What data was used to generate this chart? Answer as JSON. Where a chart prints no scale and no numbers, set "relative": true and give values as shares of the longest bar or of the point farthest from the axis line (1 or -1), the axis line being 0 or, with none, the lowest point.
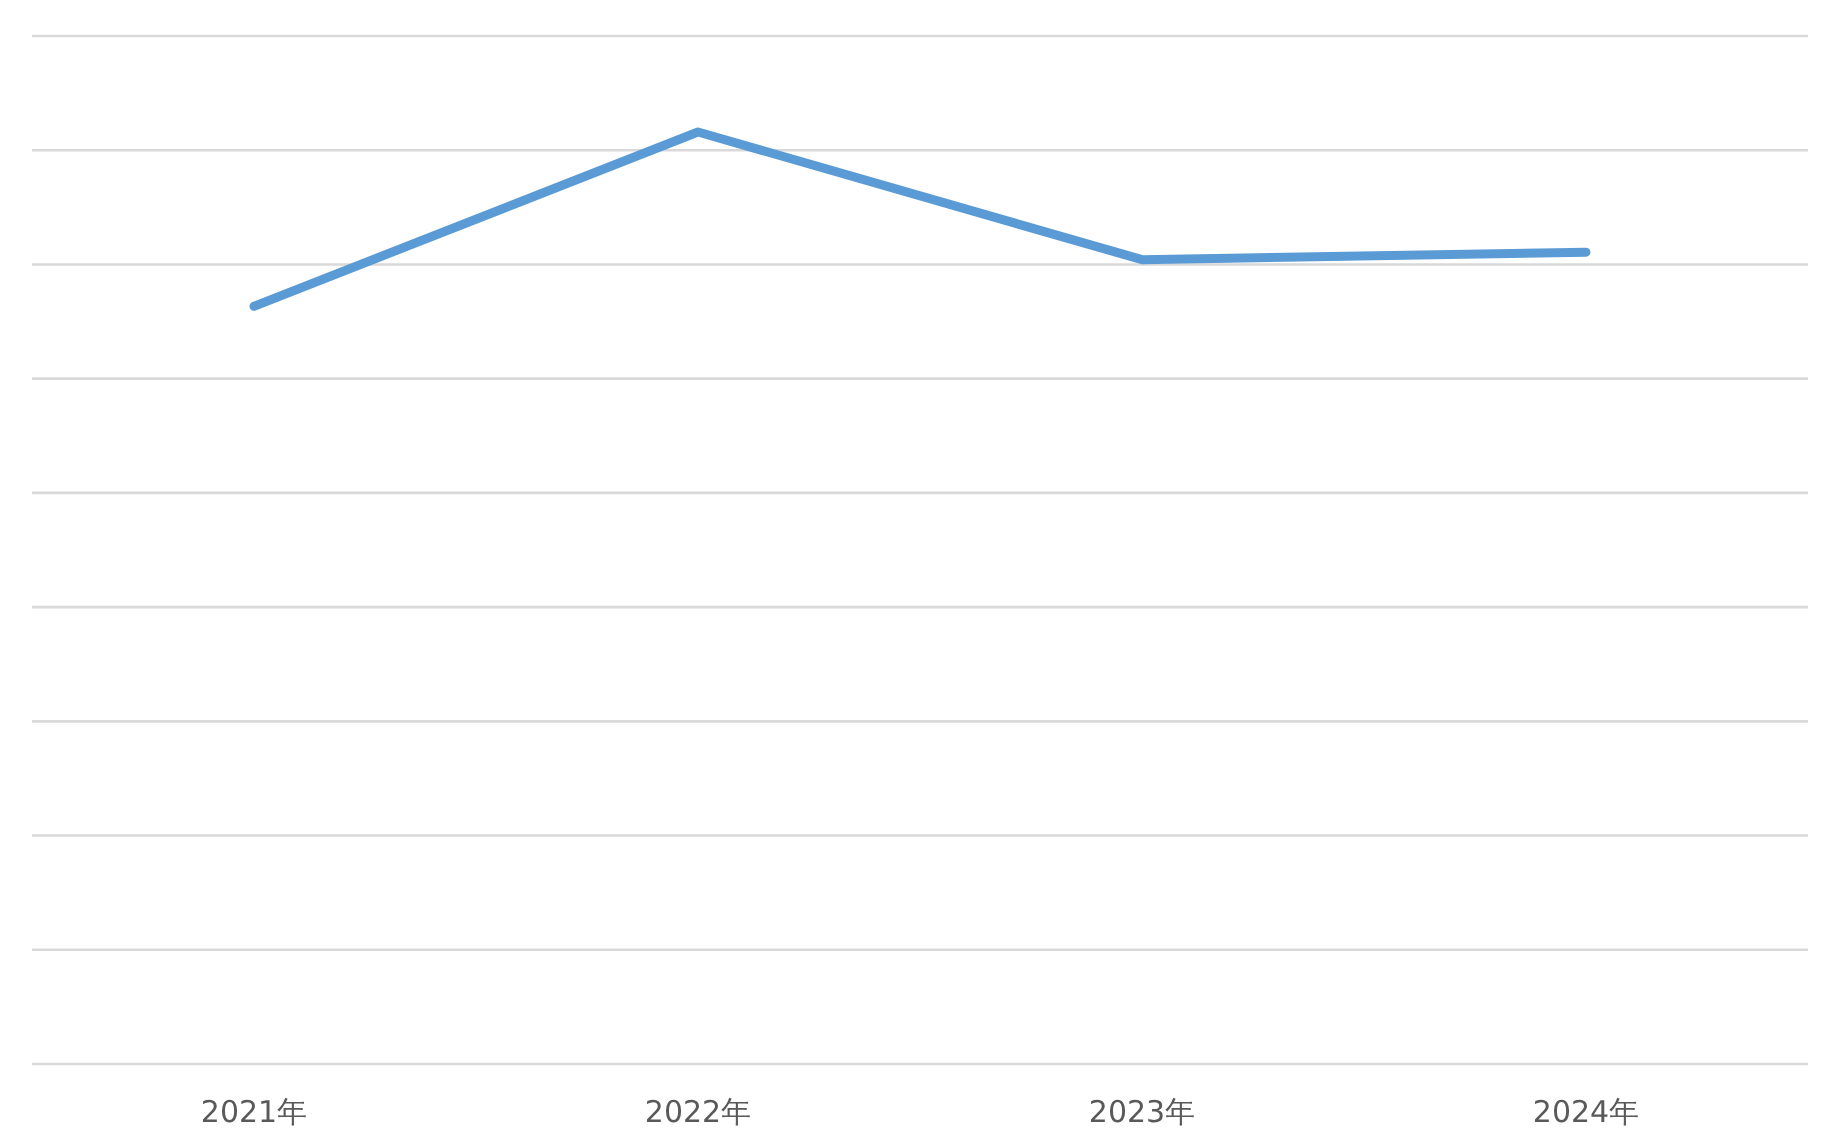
{
  "chart_data": {
    "type": "line",
    "relative": true,
    "grid": "y",
    "categories": [
      "2021年",
      "2022年",
      "2023年",
      "2024年"
    ],
    "series": [
      {
        "color": "#5b9bd5",
        "values": [
          0.813,
          1,
          0.863,
          0.871
        ]
      }
    ]
  }
}
